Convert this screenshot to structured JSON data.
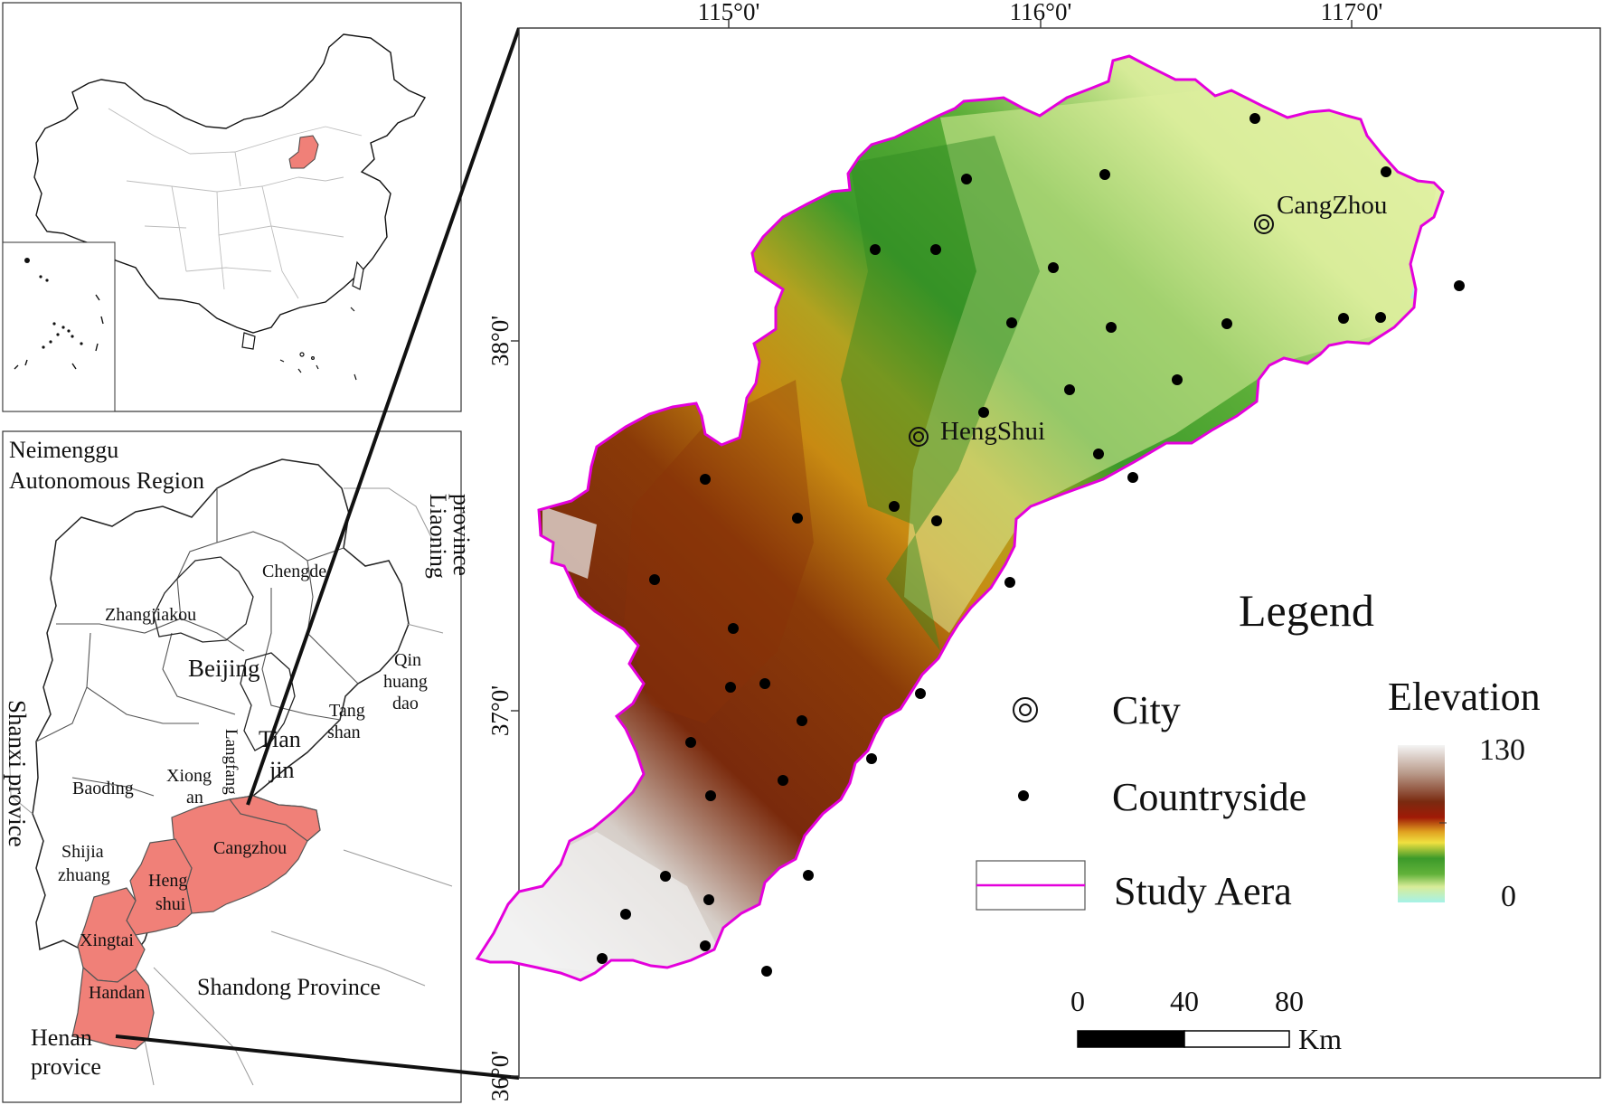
{
  "colors": {
    "study_area_outline": "#e400dc",
    "highlight_region": "#f08078",
    "province_border": "#444444",
    "country_border": "#222222",
    "elev_green": "#3c9a2a",
    "elev_lightgreen": "#d9ec9a",
    "elev_orange": "#d9a21a",
    "elev_brown": "#7a1e04",
    "elev_white": "#f2f2f2",
    "water": "#9ff0ea"
  },
  "main_map": {
    "top_ticks": [
      "115°0'",
      "116°0'",
      "117°0'"
    ],
    "left_ticks": [
      "38°0'",
      "37°0'",
      "36°0'"
    ],
    "cities": [
      {
        "name": "CangZhou"
      },
      {
        "name": "HengShui"
      }
    ]
  },
  "inset_hebei": {
    "labels": {
      "neimenggu_1": "Neimenggu",
      "neimenggu_2": "Autonomous Region",
      "liaoning_1": "Liaoning",
      "liaoning_2": "province",
      "chengde": "Chengde",
      "zhangjiakou": "Zhangjiakou",
      "beijing": "Beijing",
      "qinhuangdao_1": "Qin",
      "qinhuangdao_2": "huang",
      "qinhuangdao_3": "dao",
      "tangshan_1": "Tang",
      "tangshan_2": "shan",
      "tianjin_1": "Tian",
      "tianjin_2": "jin",
      "langfang": "Langfang",
      "xiongan_1": "Xiong",
      "xiongan_2": "an",
      "baoding": "Baoding",
      "shanxi": "Shanxi provice",
      "shijiazhuang_1": "Shijia",
      "shijiazhuang_2": "zhuang",
      "hengshui_1": "Heng",
      "hengshui_2": "shui",
      "cangzhou": "Cangzhou",
      "xingtai": "Xingtai",
      "handan": "Handan",
      "shandong": "Shandong Province",
      "henan_1": "Henan",
      "henan_2": "provice"
    }
  },
  "legend": {
    "title": "Legend",
    "city_label": "City",
    "countryside_label": "Countryside",
    "study_area_label": "Study  Aera",
    "elevation_title": "Elevation",
    "elevation_max": "130",
    "elevation_min": "0"
  },
  "scale_bar": {
    "ticks": [
      "0",
      "40",
      "80"
    ],
    "unit": "Km"
  }
}
